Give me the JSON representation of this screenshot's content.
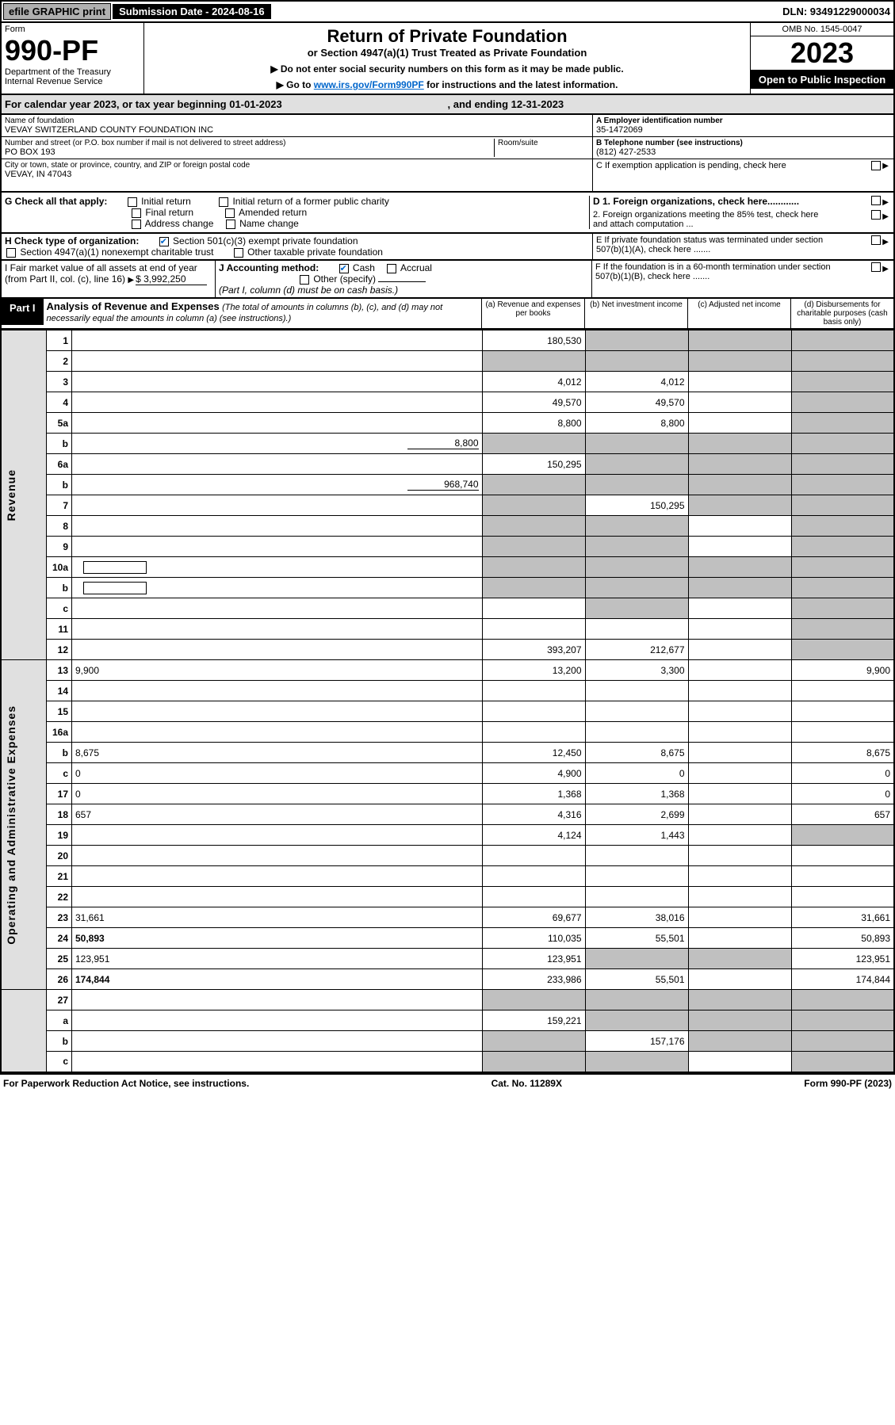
{
  "topbar": {
    "efile": "efile GRAPHIC print",
    "submission_label": "Submission Date - 2024-08-16",
    "dln": "DLN: 93491229000034"
  },
  "header": {
    "form_word": "Form",
    "form_number": "990-PF",
    "dept": "Department of the Treasury\nInternal Revenue Service",
    "title": "Return of Private Foundation",
    "subtitle": "or Section 4947(a)(1) Trust Treated as Private Foundation",
    "note1": "▶ Do not enter social security numbers on this form as it may be made public.",
    "note2_pre": "▶ Go to ",
    "note2_link": "www.irs.gov/Form990PF",
    "note2_post": " for instructions and the latest information.",
    "omb": "OMB No. 1545-0047",
    "year": "2023",
    "open": "Open to Public Inspection"
  },
  "tax_year": {
    "text1": "For calendar year 2023, or tax year beginning 01-01-2023",
    "text2": ", and ending 12-31-2023"
  },
  "entity": {
    "name_label": "Name of foundation",
    "name": "VEVAY SWITZERLAND COUNTY FOUNDATION INC",
    "addr_label": "Number and street (or P.O. box number if mail is not delivered to street address)",
    "addr": "PO BOX 193",
    "room_label": "Room/suite",
    "city_label": "City or town, state or province, country, and ZIP or foreign postal code",
    "city": "VEVAY, IN  47043",
    "a_label": "A Employer identification number",
    "a_val": "35-1472069",
    "b_label": "B Telephone number (see instructions)",
    "b_val": "(812) 427-2533",
    "c_label": "C If exemption application is pending, check here"
  },
  "g": {
    "label": "G Check all that apply:",
    "opts": [
      "Initial return",
      "Initial return of a former public charity",
      "Final return",
      "Amended return",
      "Address change",
      "Name change"
    ]
  },
  "d": {
    "d1": "D 1. Foreign organizations, check here............",
    "d2": "2. Foreign organizations meeting the 85% test, check here and attach computation ..."
  },
  "h": {
    "label": "H Check type of organization:",
    "opt1": "Section 501(c)(3) exempt private foundation",
    "opt2": "Section 4947(a)(1) nonexempt charitable trust",
    "opt3": "Other taxable private foundation"
  },
  "e": {
    "text": "E If private foundation status was terminated under section 507(b)(1)(A), check here ......."
  },
  "i": {
    "label": "I Fair market value of all assets at end of year (from Part II, col. (c), line 16)",
    "val": "$  3,992,250"
  },
  "j": {
    "label": "J Accounting method:",
    "cash": "Cash",
    "accrual": "Accrual",
    "other": "Other (specify)",
    "note": "(Part I, column (d) must be on cash basis.)"
  },
  "f": {
    "text": "F If the foundation is in a 60-month termination under section 507(b)(1)(B), check here ......."
  },
  "part1": {
    "label": "Part I",
    "title": "Analysis of Revenue and Expenses",
    "subtitle": "(The total of amounts in columns (b), (c), and (d) may not necessarily equal the amounts in column (a) (see instructions).)",
    "col_a": "(a) Revenue and expenses per books",
    "col_b": "(b) Net investment income",
    "col_c": "(c) Adjusted net income",
    "col_d": "(d) Disbursements for charitable purposes (cash basis only)"
  },
  "side": {
    "revenue": "Revenue",
    "expenses": "Operating and Administrative Expenses"
  },
  "rows": [
    {
      "n": "1",
      "d": "",
      "a": "180,530",
      "b": "",
      "c": "",
      "shaded": [
        "b",
        "c",
        "d"
      ]
    },
    {
      "n": "2",
      "d": "",
      "a": "",
      "b": "",
      "c": "",
      "shaded": [
        "a",
        "b",
        "c",
        "d"
      ]
    },
    {
      "n": "3",
      "d": "",
      "a": "4,012",
      "b": "4,012",
      "c": "",
      "shaded": [
        "d"
      ]
    },
    {
      "n": "4",
      "d": "",
      "a": "49,570",
      "b": "49,570",
      "c": "",
      "shaded": [
        "d"
      ]
    },
    {
      "n": "5a",
      "d": "",
      "a": "8,800",
      "b": "8,800",
      "c": "",
      "shaded": [
        "d"
      ]
    },
    {
      "n": "b",
      "d": "",
      "inline": "8,800",
      "a": "",
      "b": "",
      "c": "",
      "shaded": [
        "a",
        "b",
        "c",
        "d"
      ]
    },
    {
      "n": "6a",
      "d": "",
      "a": "150,295",
      "b": "",
      "c": "",
      "shaded": [
        "b",
        "c",
        "d"
      ]
    },
    {
      "n": "b",
      "d": "",
      "inline": "968,740",
      "a": "",
      "b": "",
      "c": "",
      "shaded": [
        "a",
        "b",
        "c",
        "d"
      ]
    },
    {
      "n": "7",
      "d": "",
      "a": "",
      "b": "150,295",
      "c": "",
      "shaded": [
        "a",
        "c",
        "d"
      ]
    },
    {
      "n": "8",
      "d": "",
      "a": "",
      "b": "",
      "c": "",
      "shaded": [
        "a",
        "b",
        "d"
      ]
    },
    {
      "n": "9",
      "d": "",
      "a": "",
      "b": "",
      "c": "",
      "shaded": [
        "a",
        "b",
        "d"
      ]
    },
    {
      "n": "10a",
      "d": "",
      "a": "",
      "b": "",
      "c": "",
      "shaded": [
        "a",
        "b",
        "c",
        "d"
      ],
      "inputbox": true
    },
    {
      "n": "b",
      "d": "",
      "a": "",
      "b": "",
      "c": "",
      "shaded": [
        "a",
        "b",
        "c",
        "d"
      ],
      "inputbox": true
    },
    {
      "n": "c",
      "d": "",
      "a": "",
      "b": "",
      "c": "",
      "shaded": [
        "b",
        "d"
      ]
    },
    {
      "n": "11",
      "d": "",
      "a": "",
      "b": "",
      "c": "",
      "shaded": [
        "d"
      ]
    },
    {
      "n": "12",
      "d": "",
      "bold": true,
      "a": "393,207",
      "b": "212,677",
      "c": "",
      "shaded": [
        "d"
      ]
    }
  ],
  "exp_rows": [
    {
      "n": "13",
      "d": "9,900",
      "a": "13,200",
      "b": "3,300",
      "c": ""
    },
    {
      "n": "14",
      "d": "",
      "a": "",
      "b": "",
      "c": ""
    },
    {
      "n": "15",
      "d": "",
      "a": "",
      "b": "",
      "c": ""
    },
    {
      "n": "16a",
      "d": "",
      "a": "",
      "b": "",
      "c": ""
    },
    {
      "n": "b",
      "d": "8,675",
      "a": "12,450",
      "b": "8,675",
      "c": ""
    },
    {
      "n": "c",
      "d": "0",
      "a": "4,900",
      "b": "0",
      "c": ""
    },
    {
      "n": "17",
      "d": "0",
      "a": "1,368",
      "b": "1,368",
      "c": ""
    },
    {
      "n": "18",
      "d": "657",
      "a": "4,316",
      "b": "2,699",
      "c": ""
    },
    {
      "n": "19",
      "d": "",
      "a": "4,124",
      "b": "1,443",
      "c": "",
      "shaded": [
        "d"
      ]
    },
    {
      "n": "20",
      "d": "",
      "a": "",
      "b": "",
      "c": ""
    },
    {
      "n": "21",
      "d": "",
      "a": "",
      "b": "",
      "c": ""
    },
    {
      "n": "22",
      "d": "",
      "a": "",
      "b": "",
      "c": ""
    },
    {
      "n": "23",
      "d": "31,661",
      "a": "69,677",
      "b": "38,016",
      "c": ""
    },
    {
      "n": "24",
      "d": "50,893",
      "bold": true,
      "a": "110,035",
      "b": "55,501",
      "c": ""
    },
    {
      "n": "25",
      "d": "123,951",
      "a": "123,951",
      "b": "",
      "c": "",
      "shaded": [
        "b",
        "c"
      ]
    },
    {
      "n": "26",
      "d": "174,844",
      "bold": true,
      "a": "233,986",
      "b": "55,501",
      "c": ""
    }
  ],
  "bottom_rows": [
    {
      "n": "27",
      "d": "",
      "a": "",
      "b": "",
      "c": "",
      "shaded": [
        "a",
        "b",
        "c",
        "d"
      ]
    },
    {
      "n": "a",
      "d": "",
      "bold": true,
      "a": "159,221",
      "b": "",
      "c": "",
      "shaded": [
        "b",
        "c",
        "d"
      ]
    },
    {
      "n": "b",
      "d": "",
      "bold": true,
      "a": "",
      "b": "157,176",
      "c": "",
      "shaded": [
        "a",
        "c",
        "d"
      ]
    },
    {
      "n": "c",
      "d": "",
      "bold": true,
      "a": "",
      "b": "",
      "c": "",
      "shaded": [
        "a",
        "b",
        "d"
      ]
    }
  ],
  "footer": {
    "left": "For Paperwork Reduction Act Notice, see instructions.",
    "mid": "Cat. No. 11289X",
    "right": "Form 990-PF (2023)"
  }
}
